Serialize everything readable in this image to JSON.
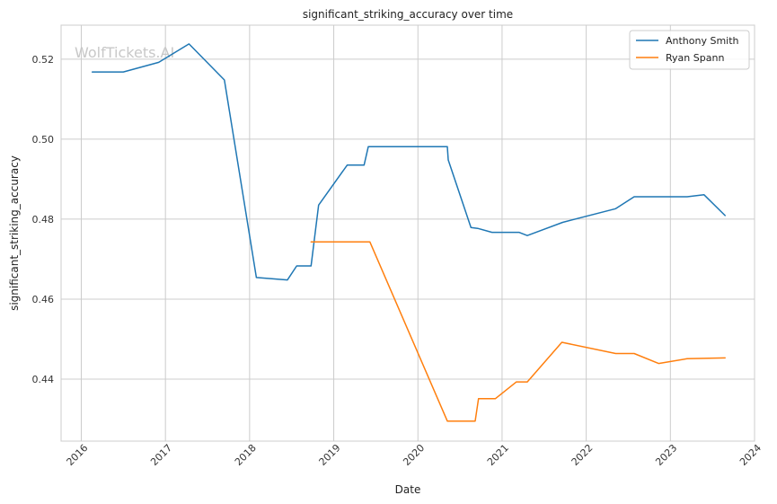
{
  "chart_data": {
    "type": "line",
    "title": "significant_striking_accuracy over time",
    "xlabel": "Date",
    "ylabel": "significant_striking_accuracy",
    "watermark": "WolfTickets.AI",
    "xlim": [
      2015.76,
      2024.0
    ],
    "ylim": [
      0.4245,
      0.5285
    ],
    "x_ticks": [
      2016,
      2017,
      2018,
      2019,
      2020,
      2021,
      2022,
      2023,
      2024
    ],
    "x_tick_labels": [
      "2016",
      "2017",
      "2018",
      "2019",
      "2020",
      "2021",
      "2022",
      "2023",
      "2024"
    ],
    "y_ticks": [
      0.44,
      0.46,
      0.48,
      0.5,
      0.52
    ],
    "y_tick_labels": [
      "0.44",
      "0.46",
      "0.48",
      "0.50",
      "0.52"
    ],
    "grid": true,
    "legend_position": "top-right",
    "series": [
      {
        "name": "Anthony Smith",
        "color": "#1f77b4",
        "points": [
          [
            2016.13,
            0.5168
          ],
          [
            2016.5,
            0.5168
          ],
          [
            2016.92,
            0.5192
          ],
          [
            2017.28,
            0.5238
          ],
          [
            2017.7,
            0.5148
          ],
          [
            2018.08,
            0.4654
          ],
          [
            2018.45,
            0.4648
          ],
          [
            2018.56,
            0.4683
          ],
          [
            2018.73,
            0.4683
          ],
          [
            2018.82,
            0.4835
          ],
          [
            2019.16,
            0.4935
          ],
          [
            2019.36,
            0.4935
          ],
          [
            2019.41,
            0.4981
          ],
          [
            2020.35,
            0.4981
          ],
          [
            2020.36,
            0.4948
          ],
          [
            2020.63,
            0.4779
          ],
          [
            2020.71,
            0.4777
          ],
          [
            2020.88,
            0.4767
          ],
          [
            2021.2,
            0.4767
          ],
          [
            2021.3,
            0.4759
          ],
          [
            2021.72,
            0.4792
          ],
          [
            2022.35,
            0.4826
          ],
          [
            2022.57,
            0.4856
          ],
          [
            2023.2,
            0.4856
          ],
          [
            2023.4,
            0.4861
          ],
          [
            2023.65,
            0.4809
          ]
        ]
      },
      {
        "name": "Ryan Spann",
        "color": "#ff7f0e",
        "points": [
          [
            2018.73,
            0.4743
          ],
          [
            2019.43,
            0.4743
          ],
          [
            2020.35,
            0.4295
          ],
          [
            2020.68,
            0.4295
          ],
          [
            2020.72,
            0.4351
          ],
          [
            2020.92,
            0.4351
          ],
          [
            2021.17,
            0.4393
          ],
          [
            2021.3,
            0.4393
          ],
          [
            2021.71,
            0.4492
          ],
          [
            2022.35,
            0.4464
          ],
          [
            2022.57,
            0.4464
          ],
          [
            2022.86,
            0.4439
          ],
          [
            2023.2,
            0.4451
          ],
          [
            2023.65,
            0.4453
          ]
        ]
      }
    ]
  }
}
